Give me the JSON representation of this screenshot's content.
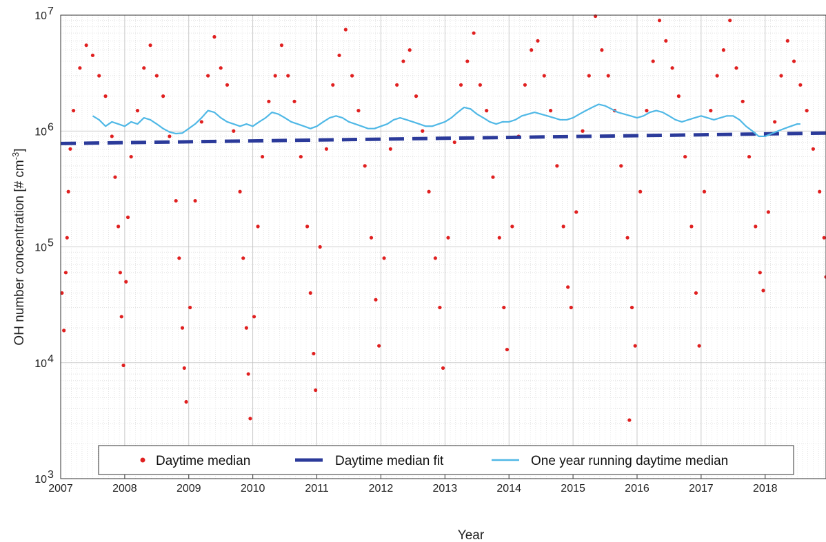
{
  "chart_data": {
    "type": "scatter",
    "xlabel": "Year",
    "ylabel": "OH number concentration [# cm",
    "ylabel_unit_exponent": "-3",
    "ylabel_close": "]",
    "yscale": "log",
    "xlim": [
      2007,
      2018.95
    ],
    "ylim": [
      1000,
      10000000
    ],
    "x_ticks": [
      "2007",
      "2008",
      "2009",
      "2010",
      "2011",
      "2012",
      "2013",
      "2014",
      "2015",
      "2016",
      "2017",
      "2018"
    ],
    "y_ticks": [
      {
        "value": 1000,
        "base": "10",
        "exp": "3"
      },
      {
        "value": 10000,
        "base": "10",
        "exp": "4"
      },
      {
        "value": 100000,
        "base": "10",
        "exp": "5"
      },
      {
        "value": 1000000,
        "base": "10",
        "exp": "6"
      },
      {
        "value": 10000000,
        "base": "10",
        "exp": "7"
      }
    ],
    "grid": true,
    "legend_position": "bottom",
    "series": [
      {
        "name": "Daytime median",
        "kind": "points",
        "color": "#e02020",
        "points": [
          [
            2007.02,
            40000
          ],
          [
            2007.05,
            19000
          ],
          [
            2007.08,
            60000
          ],
          [
            2007.1,
            120000
          ],
          [
            2007.12,
            300000
          ],
          [
            2007.15,
            700000
          ],
          [
            2007.2,
            1500000
          ],
          [
            2007.3,
            3500000
          ],
          [
            2007.4,
            5500000
          ],
          [
            2007.5,
            4500000
          ],
          [
            2007.6,
            3000000
          ],
          [
            2007.7,
            2000000
          ],
          [
            2007.8,
            900000
          ],
          [
            2007.85,
            400000
          ],
          [
            2007.9,
            150000
          ],
          [
            2007.93,
            60000
          ],
          [
            2007.95,
            25000
          ],
          [
            2007.98,
            9500
          ],
          [
            2008.02,
            50000
          ],
          [
            2008.05,
            180000
          ],
          [
            2008.1,
            600000
          ],
          [
            2008.2,
            1500000
          ],
          [
            2008.3,
            3500000
          ],
          [
            2008.4,
            5500000
          ],
          [
            2008.5,
            3000000
          ],
          [
            2008.6,
            2000000
          ],
          [
            2008.7,
            900000
          ],
          [
            2008.8,
            250000
          ],
          [
            2008.85,
            80000
          ],
          [
            2008.9,
            20000
          ],
          [
            2008.93,
            9000
          ],
          [
            2008.96,
            4600
          ],
          [
            2009.02,
            30000
          ],
          [
            2009.1,
            250000
          ],
          [
            2009.2,
            1200000
          ],
          [
            2009.3,
            3000000
          ],
          [
            2009.4,
            6500000
          ],
          [
            2009.5,
            3500000
          ],
          [
            2009.6,
            2500000
          ],
          [
            2009.7,
            1000000
          ],
          [
            2009.8,
            300000
          ],
          [
            2009.85,
            80000
          ],
          [
            2009.9,
            20000
          ],
          [
            2009.93,
            8000
          ],
          [
            2009.96,
            3300
          ],
          [
            2010.02,
            25000
          ],
          [
            2010.08,
            150000
          ],
          [
            2010.15,
            600000
          ],
          [
            2010.25,
            1800000
          ],
          [
            2010.35,
            3000000
          ],
          [
            2010.45,
            5500000
          ],
          [
            2010.55,
            3000000
          ],
          [
            2010.65,
            1800000
          ],
          [
            2010.75,
            600000
          ],
          [
            2010.85,
            150000
          ],
          [
            2010.9,
            40000
          ],
          [
            2010.95,
            12000
          ],
          [
            2010.98,
            5800
          ],
          [
            2011.05,
            100000
          ],
          [
            2011.15,
            700000
          ],
          [
            2011.25,
            2500000
          ],
          [
            2011.35,
            4500000
          ],
          [
            2011.45,
            7500000
          ],
          [
            2011.55,
            3000000
          ],
          [
            2011.65,
            1500000
          ],
          [
            2011.75,
            500000
          ],
          [
            2011.85,
            120000
          ],
          [
            2011.92,
            35000
          ],
          [
            2011.97,
            14000
          ],
          [
            2012.05,
            80000
          ],
          [
            2012.15,
            700000
          ],
          [
            2012.25,
            2500000
          ],
          [
            2012.35,
            4000000
          ],
          [
            2012.45,
            5000000
          ],
          [
            2012.55,
            2000000
          ],
          [
            2012.65,
            1000000
          ],
          [
            2012.75,
            300000
          ],
          [
            2012.85,
            80000
          ],
          [
            2012.92,
            30000
          ],
          [
            2012.97,
            9000
          ],
          [
            2013.05,
            120000
          ],
          [
            2013.15,
            800000
          ],
          [
            2013.25,
            2500000
          ],
          [
            2013.35,
            4000000
          ],
          [
            2013.45,
            7000000
          ],
          [
            2013.55,
            2500000
          ],
          [
            2013.65,
            1500000
          ],
          [
            2013.75,
            400000
          ],
          [
            2013.85,
            120000
          ],
          [
            2013.92,
            30000
          ],
          [
            2013.97,
            13000
          ],
          [
            2014.05,
            150000
          ],
          [
            2014.15,
            900000
          ],
          [
            2014.25,
            2500000
          ],
          [
            2014.35,
            5000000
          ],
          [
            2014.45,
            6000000
          ],
          [
            2014.55,
            3000000
          ],
          [
            2014.65,
            1500000
          ],
          [
            2014.75,
            500000
          ],
          [
            2014.85,
            150000
          ],
          [
            2014.92,
            45000
          ],
          [
            2014.97,
            30000
          ],
          [
            2015.05,
            200000
          ],
          [
            2015.15,
            1000000
          ],
          [
            2015.25,
            3000000
          ],
          [
            2015.35,
            9800000
          ],
          [
            2015.45,
            5000000
          ],
          [
            2015.55,
            3000000
          ],
          [
            2015.65,
            1500000
          ],
          [
            2015.75,
            500000
          ],
          [
            2015.85,
            120000
          ],
          [
            2015.88,
            3200
          ],
          [
            2015.92,
            30000
          ],
          [
            2015.97,
            14000
          ],
          [
            2016.05,
            300000
          ],
          [
            2016.15,
            1500000
          ],
          [
            2016.25,
            4000000
          ],
          [
            2016.35,
            9000000
          ],
          [
            2016.45,
            6000000
          ],
          [
            2016.55,
            3500000
          ],
          [
            2016.65,
            2000000
          ],
          [
            2016.75,
            600000
          ],
          [
            2016.85,
            150000
          ],
          [
            2016.92,
            40000
          ],
          [
            2016.97,
            14000
          ],
          [
            2017.05,
            300000
          ],
          [
            2017.15,
            1500000
          ],
          [
            2017.25,
            3000000
          ],
          [
            2017.35,
            5000000
          ],
          [
            2017.45,
            9000000
          ],
          [
            2017.55,
            3500000
          ],
          [
            2017.65,
            1800000
          ],
          [
            2017.75,
            600000
          ],
          [
            2017.85,
            150000
          ],
          [
            2017.92,
            60000
          ],
          [
            2017.97,
            42000
          ],
          [
            2018.05,
            200000
          ],
          [
            2018.15,
            1200000
          ],
          [
            2018.25,
            3000000
          ],
          [
            2018.35,
            6000000
          ],
          [
            2018.45,
            4000000
          ],
          [
            2018.55,
            2500000
          ],
          [
            2018.65,
            1500000
          ],
          [
            2018.75,
            700000
          ],
          [
            2018.85,
            300000
          ],
          [
            2018.92,
            120000
          ],
          [
            2018.95,
            55000
          ]
        ]
      },
      {
        "name": "Daytime median fit",
        "kind": "dashed-line",
        "color": "#2b3a9a",
        "points": [
          [
            2007,
            780000
          ],
          [
            2018.95,
            960000
          ]
        ]
      },
      {
        "name": "One year running daytime median",
        "kind": "line",
        "color": "#4fb8e6",
        "points": [
          [
            2007.5,
            1350000
          ],
          [
            2007.6,
            1250000
          ],
          [
            2007.7,
            1100000
          ],
          [
            2007.8,
            1200000
          ],
          [
            2007.9,
            1150000
          ],
          [
            2008.0,
            1100000
          ],
          [
            2008.1,
            1200000
          ],
          [
            2008.2,
            1150000
          ],
          [
            2008.3,
            1300000
          ],
          [
            2008.4,
            1250000
          ],
          [
            2008.5,
            1150000
          ],
          [
            2008.6,
            1050000
          ],
          [
            2008.7,
            980000
          ],
          [
            2008.8,
            950000
          ],
          [
            2008.9,
            960000
          ],
          [
            2009.0,
            1050000
          ],
          [
            2009.1,
            1150000
          ],
          [
            2009.2,
            1300000
          ],
          [
            2009.3,
            1500000
          ],
          [
            2009.4,
            1450000
          ],
          [
            2009.5,
            1300000
          ],
          [
            2009.6,
            1200000
          ],
          [
            2009.7,
            1150000
          ],
          [
            2009.8,
            1100000
          ],
          [
            2009.9,
            1150000
          ],
          [
            2010.0,
            1100000
          ],
          [
            2010.1,
            1200000
          ],
          [
            2010.2,
            1300000
          ],
          [
            2010.3,
            1450000
          ],
          [
            2010.4,
            1400000
          ],
          [
            2010.5,
            1300000
          ],
          [
            2010.6,
            1200000
          ],
          [
            2010.7,
            1150000
          ],
          [
            2010.8,
            1100000
          ],
          [
            2010.9,
            1050000
          ],
          [
            2011.0,
            1100000
          ],
          [
            2011.1,
            1200000
          ],
          [
            2011.2,
            1300000
          ],
          [
            2011.3,
            1350000
          ],
          [
            2011.4,
            1300000
          ],
          [
            2011.5,
            1200000
          ],
          [
            2011.6,
            1150000
          ],
          [
            2011.7,
            1100000
          ],
          [
            2011.8,
            1050000
          ],
          [
            2011.9,
            1050000
          ],
          [
            2012.0,
            1100000
          ],
          [
            2012.1,
            1150000
          ],
          [
            2012.2,
            1250000
          ],
          [
            2012.3,
            1300000
          ],
          [
            2012.4,
            1250000
          ],
          [
            2012.5,
            1200000
          ],
          [
            2012.6,
            1150000
          ],
          [
            2012.7,
            1100000
          ],
          [
            2012.8,
            1100000
          ],
          [
            2012.9,
            1150000
          ],
          [
            2013.0,
            1200000
          ],
          [
            2013.1,
            1300000
          ],
          [
            2013.2,
            1450000
          ],
          [
            2013.3,
            1600000
          ],
          [
            2013.4,
            1550000
          ],
          [
            2013.5,
            1400000
          ],
          [
            2013.6,
            1300000
          ],
          [
            2013.7,
            1200000
          ],
          [
            2013.8,
            1150000
          ],
          [
            2013.9,
            1200000
          ],
          [
            2014.0,
            1200000
          ],
          [
            2014.1,
            1250000
          ],
          [
            2014.2,
            1350000
          ],
          [
            2014.3,
            1400000
          ],
          [
            2014.4,
            1450000
          ],
          [
            2014.5,
            1400000
          ],
          [
            2014.6,
            1350000
          ],
          [
            2014.7,
            1300000
          ],
          [
            2014.8,
            1250000
          ],
          [
            2014.9,
            1250000
          ],
          [
            2015.0,
            1300000
          ],
          [
            2015.1,
            1400000
          ],
          [
            2015.2,
            1500000
          ],
          [
            2015.3,
            1600000
          ],
          [
            2015.4,
            1700000
          ],
          [
            2015.5,
            1650000
          ],
          [
            2015.6,
            1550000
          ],
          [
            2015.7,
            1450000
          ],
          [
            2015.8,
            1400000
          ],
          [
            2015.9,
            1350000
          ],
          [
            2016.0,
            1300000
          ],
          [
            2016.1,
            1350000
          ],
          [
            2016.2,
            1450000
          ],
          [
            2016.3,
            1500000
          ],
          [
            2016.4,
            1450000
          ],
          [
            2016.5,
            1350000
          ],
          [
            2016.6,
            1250000
          ],
          [
            2016.7,
            1200000
          ],
          [
            2016.8,
            1250000
          ],
          [
            2016.9,
            1300000
          ],
          [
            2017.0,
            1350000
          ],
          [
            2017.1,
            1300000
          ],
          [
            2017.2,
            1250000
          ],
          [
            2017.3,
            1300000
          ],
          [
            2017.4,
            1350000
          ],
          [
            2017.5,
            1350000
          ],
          [
            2017.6,
            1250000
          ],
          [
            2017.7,
            1100000
          ],
          [
            2017.8,
            1000000
          ],
          [
            2017.9,
            900000
          ],
          [
            2018.0,
            900000
          ],
          [
            2018.1,
            950000
          ],
          [
            2018.2,
            1000000
          ],
          [
            2018.3,
            1050000
          ],
          [
            2018.4,
            1100000
          ],
          [
            2018.5,
            1150000
          ],
          [
            2018.55,
            1150000
          ]
        ]
      }
    ]
  }
}
